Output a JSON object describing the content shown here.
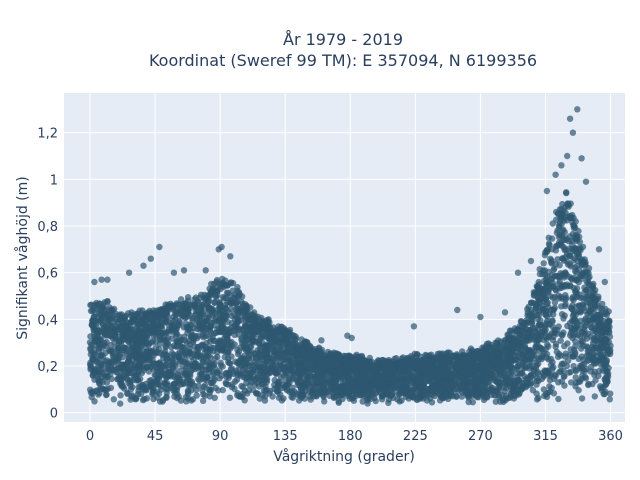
{
  "chart_data": {
    "type": "scatter",
    "title_line1": "År 1979 - 2019",
    "title_line2": "Koordinat (Sweref 99 TM): E 357094, N 6199356",
    "xlabel": "Vågriktning (grader)",
    "ylabel": "Signifikant våghöjd (m)",
    "xlim": [
      -18,
      370
    ],
    "ylim": [
      -0.04,
      1.37
    ],
    "x_ticks": [
      0,
      45,
      90,
      135,
      180,
      225,
      270,
      315,
      360
    ],
    "x_tick_labels": [
      "0",
      "45",
      "90",
      "135",
      "180",
      "225",
      "270",
      "315",
      "360"
    ],
    "y_ticks": [
      0,
      0.2,
      0.4,
      0.6,
      0.8,
      1.0,
      1.2
    ],
    "y_tick_labels": [
      "0",
      "0,2",
      "0,4",
      "0,6",
      "0,8",
      "1",
      "1,2"
    ],
    "grid": true,
    "marker_color": "#2e5770",
    "plot_bg": "#e5ecf6",
    "envelope": {
      "direction": [
        0,
        10,
        20,
        30,
        45,
        60,
        75,
        90,
        100,
        110,
        120,
        135,
        150,
        165,
        180,
        200,
        225,
        250,
        270,
        285,
        300,
        310,
        320,
        330,
        340,
        350,
        360
      ],
      "typical_max": [
        0.46,
        0.48,
        0.42,
        0.42,
        0.44,
        0.48,
        0.5,
        0.58,
        0.55,
        0.45,
        0.4,
        0.36,
        0.3,
        0.25,
        0.24,
        0.22,
        0.24,
        0.25,
        0.27,
        0.31,
        0.4,
        0.58,
        0.82,
        0.95,
        0.72,
        0.5,
        0.42
      ]
    },
    "outliers": [
      {
        "x": 3,
        "y": 0.56
      },
      {
        "x": 8,
        "y": 0.57
      },
      {
        "x": 12,
        "y": 0.57
      },
      {
        "x": 27,
        "y": 0.6
      },
      {
        "x": 37,
        "y": 0.63
      },
      {
        "x": 42,
        "y": 0.66
      },
      {
        "x": 48,
        "y": 0.71
      },
      {
        "x": 58,
        "y": 0.6
      },
      {
        "x": 65,
        "y": 0.61
      },
      {
        "x": 80,
        "y": 0.61
      },
      {
        "x": 89,
        "y": 0.7
      },
      {
        "x": 91,
        "y": 0.71
      },
      {
        "x": 97,
        "y": 0.67
      },
      {
        "x": 140,
        "y": 0.33
      },
      {
        "x": 160,
        "y": 0.31
      },
      {
        "x": 178,
        "y": 0.33
      },
      {
        "x": 181,
        "y": 0.32
      },
      {
        "x": 224,
        "y": 0.37
      },
      {
        "x": 254,
        "y": 0.44
      },
      {
        "x": 270,
        "y": 0.41
      },
      {
        "x": 287,
        "y": 0.43
      },
      {
        "x": 296,
        "y": 0.6
      },
      {
        "x": 305,
        "y": 0.65
      },
      {
        "x": 316,
        "y": 0.95
      },
      {
        "x": 322,
        "y": 1.02
      },
      {
        "x": 326,
        "y": 1.06
      },
      {
        "x": 330,
        "y": 1.1
      },
      {
        "x": 332,
        "y": 1.26
      },
      {
        "x": 334,
        "y": 1.2
      },
      {
        "x": 337,
        "y": 1.3
      },
      {
        "x": 340,
        "y": 1.09
      },
      {
        "x": 343,
        "y": 0.99
      },
      {
        "x": 352,
        "y": 0.7
      },
      {
        "x": 356,
        "y": 0.56
      }
    ]
  }
}
